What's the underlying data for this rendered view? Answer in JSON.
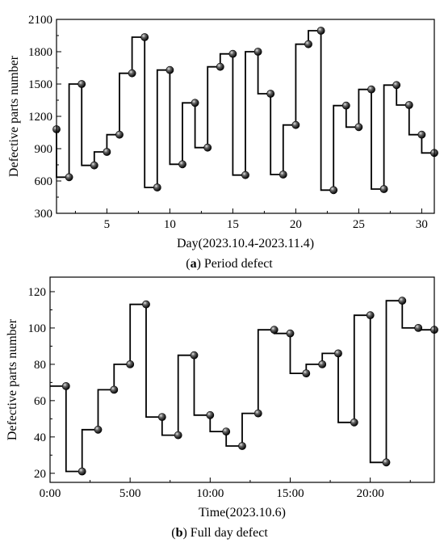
{
  "chart_data": [
    {
      "type": "line",
      "step": "pre",
      "caption_letter": "a",
      "caption_text": " Period defect",
      "xlabel": "Day(2023.10.4-2023.11.4)",
      "ylabel": "Defective parts number",
      "xlim": [
        1,
        31
      ],
      "ylim": [
        300,
        2100
      ],
      "x_ticks": [
        5,
        10,
        15,
        20,
        25,
        30
      ],
      "x_tick_labels": [
        "5",
        "10",
        "15",
        "20",
        "25",
        "30"
      ],
      "y_ticks": [
        300,
        600,
        900,
        1200,
        1500,
        1800,
        2100
      ],
      "y_tick_labels": [
        "300",
        "600",
        "900",
        "1200",
        "1500",
        "1800",
        "2100"
      ],
      "grid": false,
      "marker": "sphere",
      "x": [
        1,
        2,
        3,
        4,
        5,
        6,
        7,
        8,
        9,
        10,
        11,
        12,
        13,
        14,
        15,
        16,
        17,
        18,
        19,
        20,
        21,
        22,
        23,
        24,
        25,
        26,
        27,
        28,
        29,
        30,
        31
      ],
      "y": [
        1080,
        635,
        1500,
        745,
        870,
        1030,
        1600,
        1935,
        540,
        1630,
        755,
        1325,
        910,
        1660,
        1780,
        655,
        1800,
        1410,
        660,
        1120,
        1870,
        1995,
        515,
        1300,
        1100,
        1450,
        525,
        1490,
        1305,
        1030,
        860
      ]
    },
    {
      "type": "line",
      "step": "pre",
      "caption_letter": "b",
      "caption_text": " Full day defect",
      "xlabel": "Time(2023.10.6)",
      "ylabel": "Defective parts number",
      "xlim": [
        0,
        24
      ],
      "ylim": [
        15,
        128
      ],
      "x_ticks": [
        0,
        5,
        10,
        15,
        20
      ],
      "x_tick_labels": [
        "0:00",
        "5:00",
        "10:00",
        "15:00",
        "20:00"
      ],
      "y_ticks": [
        20,
        40,
        60,
        80,
        100,
        120
      ],
      "y_tick_labels": [
        "20",
        "40",
        "60",
        "80",
        "100",
        "120"
      ],
      "grid": false,
      "marker": "sphere",
      "x": [
        1,
        2,
        3,
        4,
        5,
        6,
        7,
        8,
        9,
        10,
        11,
        12,
        13,
        14,
        15,
        16,
        17,
        18,
        19,
        20,
        21,
        22,
        23,
        24
      ],
      "y": [
        68,
        21,
        44,
        66,
        80,
        113,
        51,
        41,
        85,
        52,
        43,
        35,
        53,
        99,
        97,
        75,
        80,
        86,
        48,
        107,
        26,
        115,
        100,
        99
      ]
    }
  ]
}
